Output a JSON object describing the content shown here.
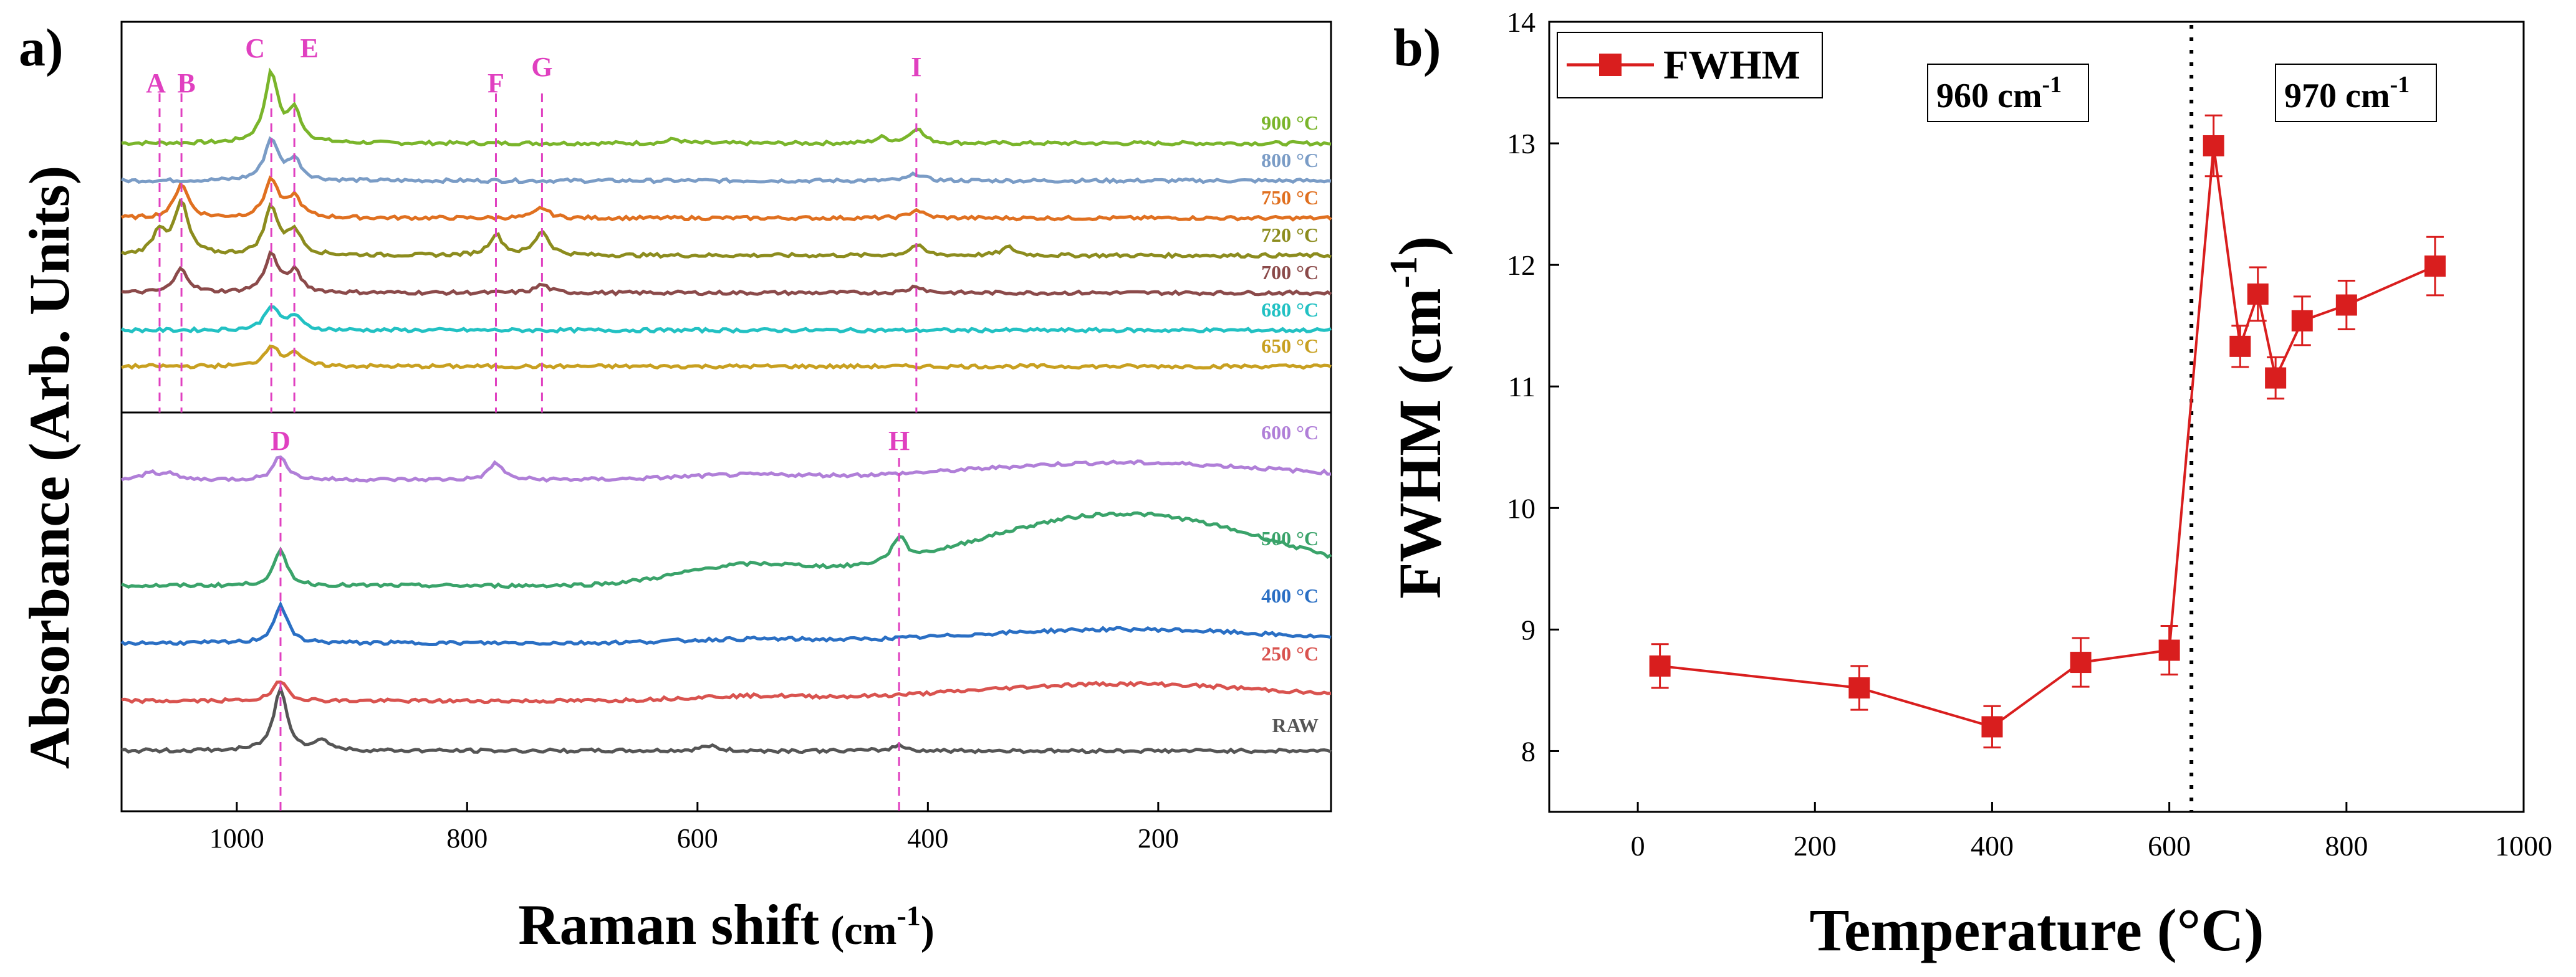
{
  "chart_data": [
    {
      "panel_label": "a)",
      "type": "line",
      "title": "",
      "xlabel_main": "Raman shift",
      "xlabel_unit_base": "(cm",
      "xlabel_unit_sup": "-1",
      "xlabel_unit_close": ")",
      "ylabel": "Absorbance (Arb. Units)",
      "xlim": [
        1100,
        50
      ],
      "x_ticks": [
        "1000",
        "800",
        "600",
        "400",
        "200"
      ],
      "x_tick_values": [
        1000,
        800,
        600,
        400,
        200
      ],
      "upper_series": [
        {
          "name": "900 °C",
          "color": "#7ab52b",
          "peaks": [
            [
              970,
              1.0
            ],
            [
              950,
              0.45
            ],
            [
              410,
              0.22
            ],
            [
              620,
              0.06
            ],
            [
              440,
              0.08
            ]
          ]
        },
        {
          "name": "800 °C",
          "color": "#7a9cc6",
          "peaks": [
            [
              970,
              0.6
            ],
            [
              950,
              0.3
            ],
            [
              410,
              0.1
            ]
          ]
        },
        {
          "name": "750 °C",
          "color": "#e07020",
          "peaks": [
            [
              1048,
              0.5
            ],
            [
              970,
              0.55
            ],
            [
              950,
              0.3
            ],
            [
              735,
              0.15
            ],
            [
              410,
              0.12
            ]
          ]
        },
        {
          "name": "720 °C",
          "color": "#8c8c1e",
          "peaks": [
            [
              1067,
              0.35
            ],
            [
              1048,
              0.75
            ],
            [
              970,
              0.7
            ],
            [
              950,
              0.35
            ],
            [
              775,
              0.3
            ],
            [
              735,
              0.35
            ],
            [
              410,
              0.15
            ],
            [
              330,
              0.12
            ]
          ]
        },
        {
          "name": "700 °C",
          "color": "#8b4a4a",
          "peaks": [
            [
              1048,
              0.35
            ],
            [
              970,
              0.55
            ],
            [
              950,
              0.3
            ],
            [
              735,
              0.12
            ],
            [
              410,
              0.1
            ]
          ]
        },
        {
          "name": "680 °C",
          "color": "#22c1c3",
          "peaks": [
            [
              970,
              0.35
            ],
            [
              950,
              0.2
            ]
          ]
        },
        {
          "name": "650 °C",
          "color": "#c8a020",
          "peaks": [
            [
              970,
              0.3
            ],
            [
              950,
              0.2
            ]
          ]
        }
      ],
      "lower_series": [
        {
          "name": "600 °C",
          "color": "#b07fd8",
          "peaks": [
            [
              1075,
              0.1
            ],
            [
              1060,
              0.1
            ],
            [
              962,
              0.35
            ],
            [
              775,
              0.25
            ]
          ],
          "hump": 0.25
        },
        {
          "name": "500 °C",
          "color": "#3aa36a",
          "peaks": [
            [
              962,
              0.5
            ],
            [
              425,
              0.35
            ]
          ],
          "hump": 1.05
        },
        {
          "name": "400 °C",
          "color": "#2a6fc4",
          "peaks": [
            [
              962,
              0.55
            ]
          ],
          "hump": 0.2
        },
        {
          "name": "250 °C",
          "color": "#d9534f",
          "peaks": [
            [
              962,
              0.3
            ]
          ],
          "hump": 0.25
        },
        {
          "name": "RAW",
          "color": "#555555",
          "peaks": [
            [
              962,
              0.9
            ],
            [
              925,
              0.15
            ],
            [
              590,
              0.08
            ],
            [
              425,
              0.08
            ]
          ],
          "hump": 0.0
        }
      ],
      "upper_markers": [
        {
          "label": "A",
          "x": 1067
        },
        {
          "label": "B",
          "x": 1048
        },
        {
          "label": "C",
          "x": 970
        },
        {
          "label": "E",
          "x": 950
        },
        {
          "label": "F",
          "x": 775
        },
        {
          "label": "G",
          "x": 735
        },
        {
          "label": "I",
          "x": 410
        }
      ],
      "lower_markers": [
        {
          "label": "D",
          "x": 962
        },
        {
          "label": "H",
          "x": 425
        }
      ],
      "marker_color": "#e040c0"
    },
    {
      "panel_label": "b)",
      "type": "line",
      "title": "",
      "xlabel": "Temperature (°C)",
      "ylabel_base": "FWHM (cm",
      "ylabel_sup": "-1",
      "ylabel_close": ")",
      "xlim": [
        -100,
        1000
      ],
      "ylim": [
        7.5,
        14
      ],
      "x_ticks": [
        "0",
        "200",
        "400",
        "600",
        "800",
        "1000"
      ],
      "x_tick_values": [
        0,
        200,
        400,
        600,
        800,
        1000
      ],
      "y_ticks": [
        "8",
        "9",
        "10",
        "11",
        "12",
        "13",
        "14"
      ],
      "y_tick_values": [
        8,
        9,
        10,
        11,
        12,
        13,
        14
      ],
      "legend": "FWHM",
      "legend_placement": "top-left",
      "series_color": "#d91e1e",
      "x": [
        25,
        250,
        400,
        500,
        600,
        650,
        680,
        700,
        720,
        750,
        800,
        900
      ],
      "y": [
        8.7,
        8.52,
        8.2,
        8.73,
        8.83,
        12.98,
        11.33,
        11.76,
        11.07,
        11.54,
        11.67,
        11.99
      ],
      "yerr": [
        0.18,
        0.18,
        0.17,
        0.2,
        0.2,
        0.25,
        0.17,
        0.22,
        0.17,
        0.2,
        0.2,
        0.24
      ],
      "divider_x": 625,
      "annotation_left_base": "960 cm",
      "annotation_left_sup": "-1",
      "annotation_right_base": "970 cm",
      "annotation_right_sup": "-1"
    }
  ]
}
